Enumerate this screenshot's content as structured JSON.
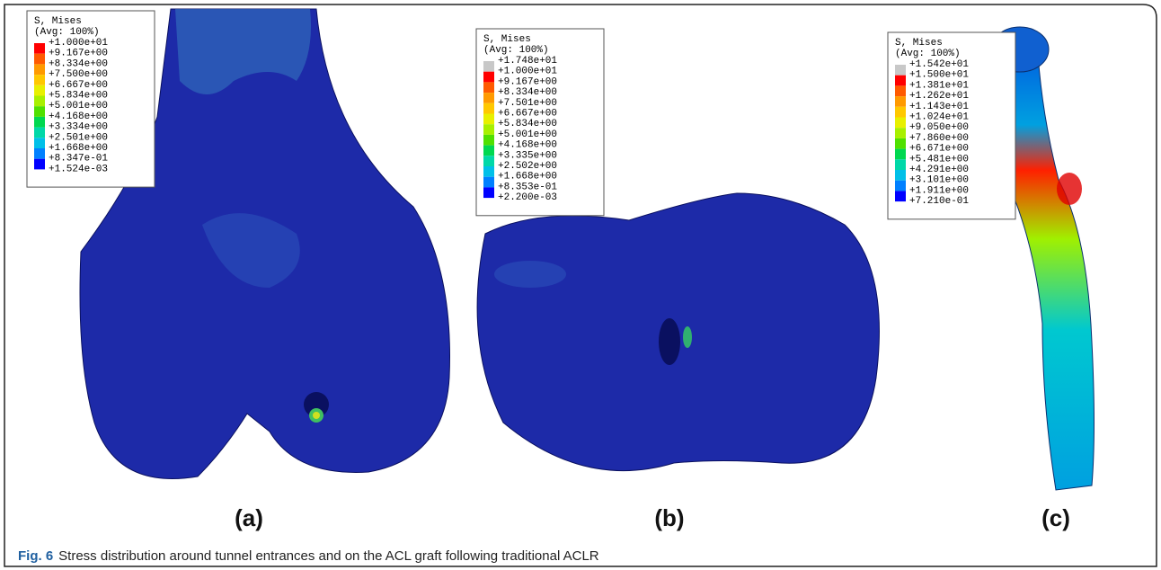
{
  "figure": {
    "panels": [
      {
        "label": "(a)",
        "legend": {
          "title": "S, Mises",
          "subtitle": "(Avg: 100%)",
          "values": [
            "+1.000e+01",
            "+9.167e+00",
            "+8.334e+00",
            "+7.500e+00",
            "+6.667e+00",
            "+5.834e+00",
            "+5.001e+00",
            "+4.168e+00",
            "+3.334e+00",
            "+2.501e+00",
            "+1.668e+00",
            "+8.347e-01",
            "+1.524e-03"
          ],
          "colors": [
            "#ff0000",
            "#ff5a00",
            "#ff9a00",
            "#ffc800",
            "#e8f000",
            "#a8f000",
            "#50e000",
            "#00d850",
            "#00d8a8",
            "#00c0e8",
            "#0080ff",
            "#0000ff"
          ]
        }
      },
      {
        "label": "(b)",
        "legend": {
          "title": "S, Mises",
          "subtitle": "(Avg: 100%)",
          "values": [
            "+1.748e+01",
            "+1.000e+01",
            "+9.167e+00",
            "+8.334e+00",
            "+7.501e+00",
            "+6.667e+00",
            "+5.834e+00",
            "+5.001e+00",
            "+4.168e+00",
            "+3.335e+00",
            "+2.502e+00",
            "+1.668e+00",
            "+8.353e-01",
            "+2.200e-03"
          ],
          "colors": [
            "#c8c8c8",
            "#ff0000",
            "#ff5a00",
            "#ff9a00",
            "#ffc800",
            "#e8f000",
            "#a8f000",
            "#50e000",
            "#00d850",
            "#00d8a8",
            "#00c0e8",
            "#0080ff",
            "#0000ff"
          ]
        }
      },
      {
        "label": "(c)",
        "legend": {
          "title": "S, Mises",
          "subtitle": "(Avg: 100%)",
          "values": [
            "+1.542e+01",
            "+1.500e+01",
            "+1.381e+01",
            "+1.262e+01",
            "+1.143e+01",
            "+1.024e+01",
            "+9.050e+00",
            "+7.860e+00",
            "+6.671e+00",
            "+5.481e+00",
            "+4.291e+00",
            "+3.101e+00",
            "+1.911e+00",
            "+7.210e-01"
          ],
          "colors": [
            "#c8c8c8",
            "#ff0000",
            "#ff5a00",
            "#ff9a00",
            "#ffc800",
            "#e8f000",
            "#a8f000",
            "#50e000",
            "#00d850",
            "#00d8a8",
            "#00c0e8",
            "#0080ff",
            "#0000ff"
          ]
        }
      }
    ],
    "caption": {
      "prefix": "Fig. 6",
      "text": "Stress distribution around tunnel entrances and on the ACL graft following traditional ACLR"
    }
  }
}
